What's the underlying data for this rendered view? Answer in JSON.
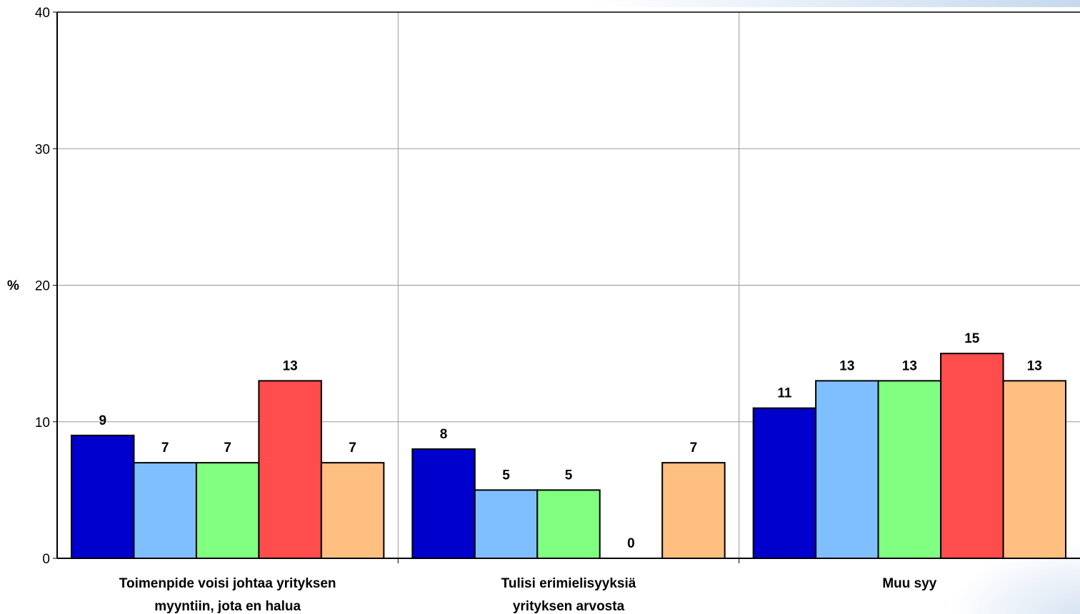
{
  "chart_data": {
    "type": "bar",
    "ylabel": "%",
    "ylim": [
      0,
      40
    ],
    "yticks": [
      "0",
      "10",
      "20",
      "30",
      "40"
    ],
    "grid": true,
    "categories": [
      [
        "Toimenpide voisi johtaa yrityksen",
        "myyntiin, jota en halua"
      ],
      [
        "Tulisi erimielisyyksiä",
        "yrityksen arvosta"
      ],
      [
        "Muu syy"
      ]
    ],
    "series": [
      {
        "color": "#0000cc",
        "values": [
          9,
          8,
          11
        ]
      },
      {
        "color": "#80bfff",
        "values": [
          7,
          5,
          13
        ]
      },
      {
        "color": "#80ff80",
        "values": [
          7,
          5,
          13
        ]
      },
      {
        "color": "#ff4c4c",
        "values": [
          13,
          0,
          15
        ]
      },
      {
        "color": "#ffbf80",
        "values": [
          7,
          7,
          13
        ]
      }
    ]
  }
}
